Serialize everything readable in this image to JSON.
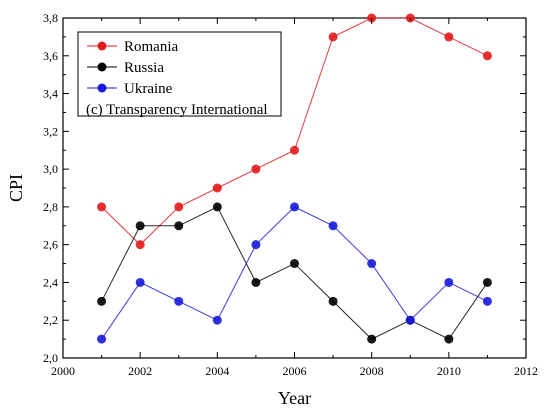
{
  "chart_data": {
    "type": "line",
    "xlabel": "Year",
    "ylabel": "CPI",
    "xlim": [
      2000,
      2012
    ],
    "ylim": [
      2.0,
      3.8
    ],
    "x_ticks": [
      "2000",
      "2002",
      "2004",
      "2006",
      "2008",
      "2010",
      "2012"
    ],
    "y_ticks": [
      "2,0",
      "2,2",
      "2,4",
      "2,6",
      "2,8",
      "3,0",
      "3,2",
      "3,4",
      "3,6",
      "3,8"
    ],
    "legend_placement": "top-left",
    "note": "(c) Transparency International",
    "series": [
      {
        "name": "Romania",
        "color": "#e31a1c",
        "x": [
          2001,
          2002,
          2003,
          2004,
          2005,
          2006,
          2007,
          2008,
          2009,
          2010,
          2011
        ],
        "y": [
          2.8,
          2.6,
          2.8,
          2.9,
          3.0,
          3.1,
          3.7,
          3.8,
          3.8,
          3.7,
          3.6
        ]
      },
      {
        "name": "Russia",
        "color": "#000000",
        "x": [
          2001,
          2002,
          2003,
          2004,
          2005,
          2006,
          2007,
          2008,
          2009,
          2010,
          2011
        ],
        "y": [
          2.3,
          2.7,
          2.7,
          2.8,
          2.4,
          2.5,
          2.3,
          2.1,
          2.2,
          2.1,
          2.4
        ]
      },
      {
        "name": "Ukraine",
        "color": "#1a1adb",
        "x": [
          2001,
          2002,
          2003,
          2004,
          2005,
          2006,
          2007,
          2008,
          2009,
          2010,
          2011
        ],
        "y": [
          2.1,
          2.4,
          2.3,
          2.2,
          2.6,
          2.8,
          2.7,
          2.5,
          2.2,
          2.4,
          2.3
        ]
      }
    ]
  }
}
